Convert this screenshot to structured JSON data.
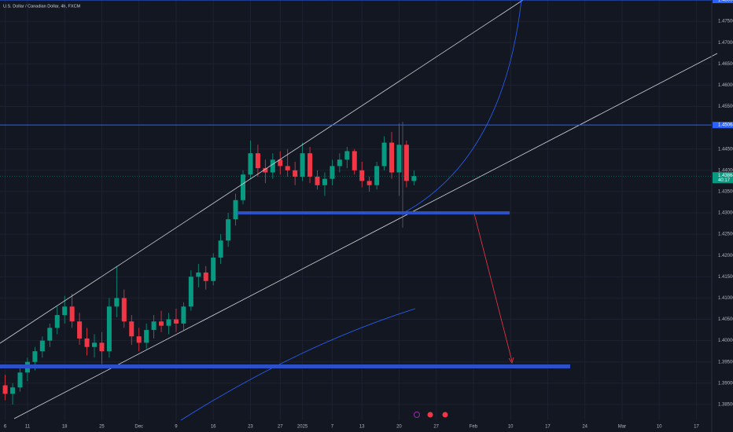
{
  "chart_data": {
    "type": "candlestick",
    "title": "U.S. Dollar / Canadian Dollar, 4h, FXCM",
    "categories": [
      "6",
      null,
      null,
      "11",
      null,
      null,
      null,
      null,
      "18",
      null,
      null,
      null,
      null,
      "25",
      null,
      null,
      null,
      null,
      "Dec",
      null,
      null,
      null,
      null,
      "9",
      null,
      null,
      null,
      null,
      "16",
      null,
      null,
      null,
      null,
      "23",
      null,
      null,
      null,
      "27",
      null,
      null,
      "2025",
      null,
      null,
      null,
      "7",
      null,
      null,
      null,
      "13",
      null,
      null,
      null,
      null,
      "20",
      null,
      null,
      null,
      null,
      "27",
      null,
      null,
      null,
      null,
      "Feb",
      null,
      null,
      null,
      null,
      "10",
      null,
      null,
      null,
      null,
      "17",
      null,
      null,
      null,
      null,
      "24",
      null,
      null,
      null,
      null,
      "Mar",
      null,
      null,
      null,
      null,
      "10",
      null,
      null,
      null,
      null,
      "17",
      null
    ],
    "open": [
      1.3895,
      1.3875,
      1.389,
      1.3925,
      1.395,
      1.3975,
      1.4,
      1.403,
      1.406,
      1.408,
      1.4045,
      1.4005,
      1.3985,
      1.3995,
      1.3975,
      1.408,
      1.41,
      1.4045,
      1.401,
      1.3995,
      1.4025,
      1.4045,
      1.4035,
      1.405,
      1.404,
      1.408,
      1.415,
      1.416,
      1.414,
      1.4195,
      1.4235,
      1.4285,
      1.433,
      1.439,
      1.444,
      1.4405,
      1.4395,
      1.4425,
      1.441,
      1.44,
      1.4385,
      1.444,
      1.4385,
      1.4365,
      1.438,
      1.441,
      1.4425,
      1.4445,
      1.44,
      1.4375,
      1.4365,
      1.441,
      1.4465,
      1.4395,
      1.446,
      1.4375,
      null,
      null,
      null,
      null,
      null,
      null,
      null,
      null,
      null,
      null,
      null,
      null,
      null,
      null,
      null,
      null,
      null,
      null,
      null,
      null,
      null,
      null,
      null,
      null,
      null,
      null,
      null,
      null,
      null,
      null,
      null,
      null,
      null,
      null,
      null,
      null,
      null,
      null,
      null
    ],
    "high": [
      1.392,
      1.39,
      1.3935,
      1.396,
      1.3985,
      1.401,
      1.404,
      1.408,
      1.4105,
      1.411,
      1.4065,
      1.403,
      1.4015,
      1.402,
      1.41,
      1.4175,
      1.412,
      1.406,
      1.403,
      1.404,
      1.406,
      1.407,
      1.4065,
      1.4075,
      1.409,
      1.4165,
      1.418,
      1.4175,
      1.4205,
      1.425,
      1.43,
      1.4345,
      1.44,
      1.447,
      1.446,
      1.4425,
      1.444,
      1.4445,
      1.445,
      1.442,
      1.4465,
      1.4455,
      1.44,
      1.4395,
      1.4425,
      1.444,
      1.4455,
      1.445,
      1.442,
      1.4385,
      1.442,
      1.448,
      1.449,
      1.451,
      1.447,
      1.44,
      null,
      null,
      null,
      null,
      null,
      null,
      null,
      null,
      null,
      null,
      null,
      null,
      null,
      null,
      null,
      null,
      null,
      null,
      null,
      null,
      null,
      null,
      null,
      null,
      null,
      null,
      null,
      null,
      null,
      null,
      null,
      null,
      null,
      null,
      null,
      null,
      null,
      null,
      null
    ],
    "low": [
      1.386,
      1.385,
      1.388,
      1.3905,
      1.393,
      1.396,
      1.3985,
      1.4015,
      1.404,
      1.403,
      1.399,
      1.3965,
      1.396,
      1.3945,
      1.396,
      1.4055,
      1.403,
      1.399,
      1.3975,
      1.398,
      1.4005,
      1.402,
      1.4015,
      1.402,
      1.4025,
      1.407,
      1.4125,
      1.412,
      1.413,
      1.418,
      1.422,
      1.427,
      1.432,
      1.438,
      1.4385,
      1.437,
      1.438,
      1.439,
      1.4385,
      1.4365,
      1.4375,
      1.437,
      1.4355,
      1.434,
      1.4365,
      1.4395,
      1.4405,
      1.439,
      1.436,
      1.435,
      1.4355,
      1.44,
      1.438,
      1.434,
      1.436,
      1.4365,
      null,
      null,
      null,
      null,
      null,
      null,
      null,
      null,
      null,
      null,
      null,
      null,
      null,
      null,
      null,
      null,
      null,
      null,
      null,
      null,
      null,
      null,
      null,
      null,
      null,
      null,
      null,
      null,
      null,
      null,
      null,
      null,
      null,
      null,
      null,
      null,
      null,
      null,
      null
    ],
    "close": [
      1.3875,
      1.389,
      1.3925,
      1.395,
      1.3975,
      1.4,
      1.403,
      1.406,
      1.408,
      1.4045,
      1.4005,
      1.3985,
      1.3995,
      1.3975,
      1.408,
      1.41,
      1.4045,
      1.401,
      1.3995,
      1.4025,
      1.4045,
      1.4035,
      1.405,
      1.404,
      1.408,
      1.415,
      1.416,
      1.414,
      1.4195,
      1.4235,
      1.4285,
      1.433,
      1.439,
      1.444,
      1.4405,
      1.4395,
      1.4425,
      1.441,
      1.44,
      1.4385,
      1.444,
      1.4385,
      1.4365,
      1.438,
      1.441,
      1.4425,
      1.4445,
      1.44,
      1.4375,
      1.4365,
      1.441,
      1.4465,
      1.4395,
      1.446,
      1.4375,
      1.43864,
      null,
      null,
      null,
      null,
      null,
      null,
      null,
      null,
      null,
      null,
      null,
      null,
      null,
      null,
      null,
      null,
      null,
      null,
      null,
      null,
      null,
      null,
      null,
      null,
      null,
      null,
      null,
      null,
      null,
      null,
      null,
      null,
      null,
      null,
      null,
      null,
      null,
      null,
      null
    ],
    "up_color": "#089981",
    "down_color": "#f23645",
    "ylim": [
      1.3813,
      1.48
    ],
    "yticks": [
      {
        "value": 1.385,
        "label": "1.38500"
      },
      {
        "value": 1.39,
        "label": "1.39000"
      },
      {
        "value": 1.395,
        "label": "1.39500"
      },
      {
        "value": 1.4,
        "label": "1.40000"
      },
      {
        "value": 1.405,
        "label": "1.40500"
      },
      {
        "value": 1.41,
        "label": "1.41000"
      },
      {
        "value": 1.415,
        "label": "1.41500"
      },
      {
        "value": 1.42,
        "label": "1.42000"
      },
      {
        "value": 1.425,
        "label": "1.42500"
      },
      {
        "value": 1.43,
        "label": "1.43000"
      },
      {
        "value": 1.435,
        "label": "1.43500"
      },
      {
        "value": 1.44,
        "label": "1.44000"
      },
      {
        "value": 1.445,
        "label": "1.44500"
      },
      {
        "value": 1.455,
        "label": "1.45500"
      },
      {
        "value": 1.46,
        "label": "1.46000"
      },
      {
        "value": 1.465,
        "label": "1.46500"
      },
      {
        "value": 1.47,
        "label": "1.47000"
      },
      {
        "value": 1.475,
        "label": "1.47500"
      }
    ],
    "price_labels": [
      {
        "value": 1.48,
        "label": "1.48000"
      },
      {
        "value": 1.45064
      }
    ],
    "last_price": {
      "value": 1.43864,
      "countdown": "40:17"
    },
    "grid": true
  }
}
